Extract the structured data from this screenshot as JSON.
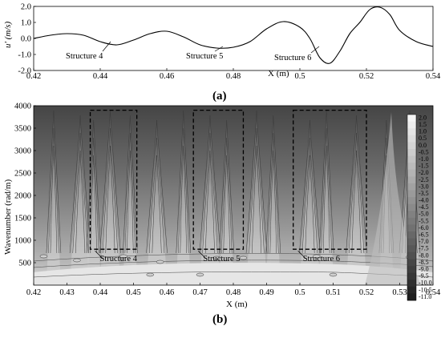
{
  "chart_data": [
    {
      "type": "line",
      "panel_label": "(a)",
      "xlabel": "X (m)",
      "ylabel": "u' (m/s)",
      "xlim": [
        0.42,
        0.54
      ],
      "ylim": [
        -2.0,
        2.0
      ],
      "xticks": [
        "0.42",
        "0.44",
        "0.46",
        "0.48",
        "0.5",
        "0.52",
        "0.54"
      ],
      "yticks": [
        "2.0",
        "1.0",
        "0.0",
        "-1.0",
        "-2.0"
      ],
      "x": [
        0.42,
        0.425,
        0.43,
        0.435,
        0.44,
        0.445,
        0.45,
        0.455,
        0.46,
        0.465,
        0.47,
        0.475,
        0.48,
        0.485,
        0.49,
        0.495,
        0.5,
        0.503,
        0.506,
        0.509,
        0.512,
        0.515,
        0.518,
        0.521,
        0.524,
        0.527,
        0.53,
        0.535,
        0.54
      ],
      "y": [
        0.0,
        0.2,
        0.3,
        0.2,
        -0.2,
        -0.4,
        -0.1,
        0.3,
        0.45,
        0.1,
        -0.4,
        -0.6,
        -0.55,
        -0.2,
        0.6,
        1.05,
        0.7,
        0.0,
        -1.2,
        -1.55,
        -0.8,
        0.3,
        1.0,
        1.8,
        1.95,
        1.5,
        0.5,
        -0.2,
        -0.5
      ],
      "annotations": [
        "Structure 4",
        "Structure 5",
        "Structure 6"
      ]
    },
    {
      "type": "heatmap",
      "panel_label": "(b)",
      "xlabel": "X (m)",
      "ylabel": "Wavenumber (rad/m)",
      "xlim": [
        0.42,
        0.54
      ],
      "ylim": [
        0,
        4000
      ],
      "xticks": [
        "0.42",
        "0.43",
        "0.44",
        "0.45",
        "0.46",
        "0.47",
        "0.48",
        "0.49",
        "0.5",
        "0.51",
        "0.52",
        "0.53",
        "0.54"
      ],
      "yticks": [
        "4000",
        "3500",
        "3000",
        "2500",
        "2000",
        "1500",
        "1000",
        "500"
      ],
      "colorbar_levels": [
        "2.0",
        "1.5",
        "1.0",
        "0.5",
        "0.0",
        "-0.5",
        "-1.0",
        "-1.5",
        "-2.0",
        "-2.5",
        "-3.0",
        "-3.5",
        "-4.0",
        "-4.5",
        "-5.0",
        "-5.5",
        "-6.0",
        "-6.5",
        "-7.0",
        "-7.5",
        "-8.0",
        "-8.5",
        "-9.0",
        "-9.5",
        "-10.0",
        "-10.5",
        "-11.0"
      ],
      "structures": [
        {
          "label": "Structure 4",
          "x_range": [
            0.437,
            0.451
          ],
          "y_range": [
            800,
            3900
          ]
        },
        {
          "label": "Structure 5",
          "x_range": [
            0.468,
            0.483
          ],
          "y_range": [
            800,
            3900
          ]
        },
        {
          "label": "Structure 6",
          "x_range": [
            0.498,
            0.52
          ],
          "y_range": [
            800,
            3900
          ]
        }
      ],
      "ridge_x": [
        0.426,
        0.434,
        0.438,
        0.443,
        0.449,
        0.457,
        0.465,
        0.473,
        0.478,
        0.487,
        0.492,
        0.503,
        0.508,
        0.517,
        0.526,
        0.533
      ],
      "colors": {
        "dark": "#2b2b2b",
        "light": "#f0f0f0"
      }
    }
  ]
}
